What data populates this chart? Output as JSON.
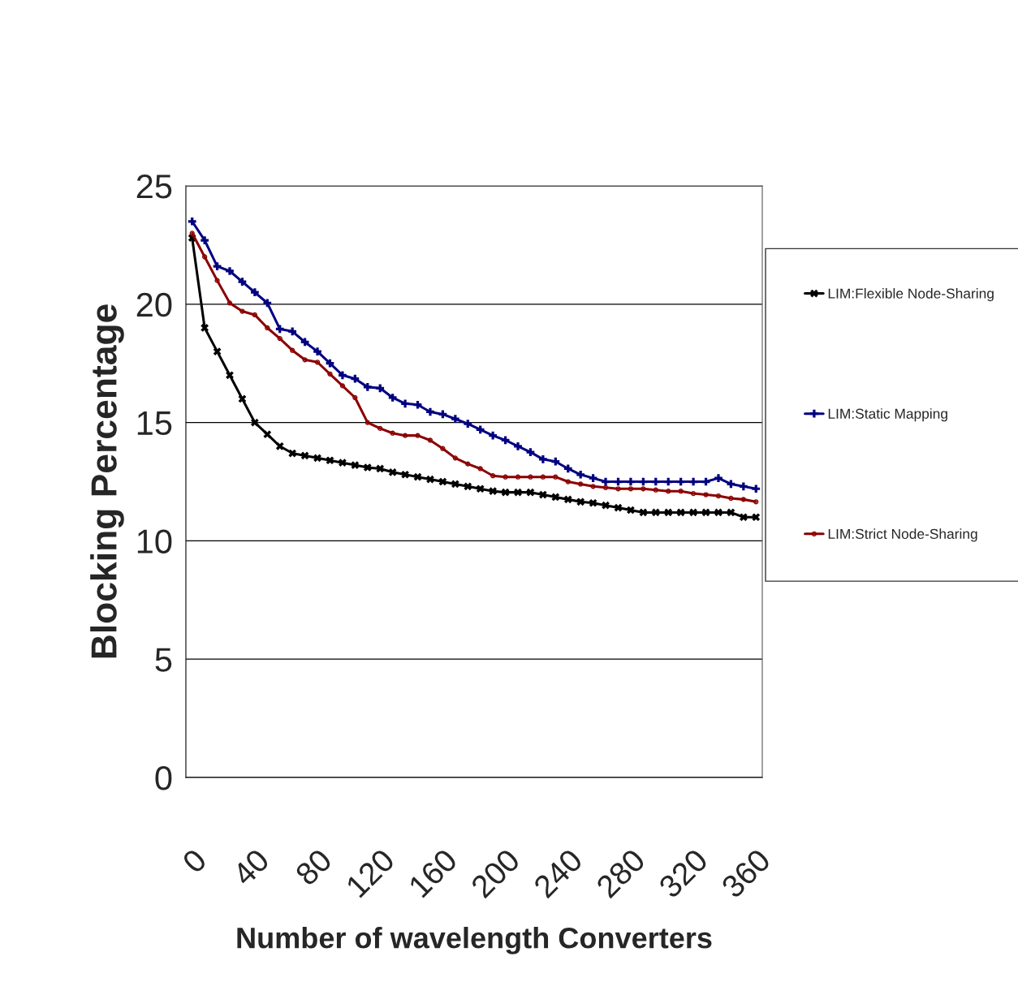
{
  "chart_data": {
    "type": "line",
    "xlabel": "Number of wavelength Converters",
    "ylabel": "Blocking Percentage",
    "categories": [
      "0",
      null,
      null,
      null,
      null,
      "40",
      null,
      null,
      null,
      null,
      "80",
      null,
      null,
      null,
      null,
      "120",
      null,
      null,
      null,
      null,
      "160",
      null,
      null,
      null,
      null,
      "200",
      null,
      null,
      null,
      null,
      "240",
      null,
      null,
      null,
      null,
      "280",
      null,
      null,
      null,
      null,
      "320",
      null,
      null,
      null,
      null,
      "360"
    ],
    "series": [
      {
        "name": "LIM:Flexible Node-Sharing",
        "color": "#000000",
        "marker": "cross",
        "values": [
          22.8,
          19.0,
          18.0,
          17.0,
          16.0,
          15.0,
          14.5,
          14.0,
          13.7,
          13.6,
          13.5,
          13.4,
          13.3,
          13.2,
          13.1,
          13.05,
          12.9,
          12.8,
          12.7,
          12.6,
          12.5,
          12.4,
          12.3,
          12.2,
          12.1,
          12.05,
          12.05,
          12.05,
          11.95,
          11.85,
          11.75,
          11.65,
          11.6,
          11.5,
          11.4,
          11.3,
          11.2,
          11.2,
          11.2,
          11.2,
          11.2,
          11.2,
          11.2,
          11.2,
          11.0,
          11.0
        ]
      },
      {
        "name": "LIM:Static Mapping",
        "color": "#000080",
        "marker": "plus",
        "values": [
          23.5,
          22.7,
          21.6,
          21.4,
          20.95,
          20.5,
          20.05,
          18.95,
          18.85,
          18.4,
          18.0,
          17.5,
          17.0,
          16.85,
          16.5,
          16.45,
          16.05,
          15.8,
          15.75,
          15.45,
          15.35,
          15.15,
          14.95,
          14.7,
          14.45,
          14.25,
          14.0,
          13.75,
          13.45,
          13.35,
          13.05,
          12.8,
          12.65,
          12.5,
          12.5,
          12.5,
          12.5,
          12.5,
          12.5,
          12.5,
          12.5,
          12.5,
          12.65,
          12.4,
          12.3,
          12.2
        ]
      },
      {
        "name": "LIM:Strict Node-Sharing",
        "color": "#8b0000",
        "marker": "circle",
        "values": [
          23.0,
          22.0,
          21.0,
          20.05,
          19.7,
          19.55,
          19.0,
          18.55,
          18.05,
          17.65,
          17.55,
          17.05,
          16.55,
          16.05,
          15.0,
          14.75,
          14.55,
          14.45,
          14.45,
          14.25,
          13.9,
          13.5,
          13.25,
          13.05,
          12.75,
          12.7,
          12.7,
          12.7,
          12.7,
          12.7,
          12.5,
          12.4,
          12.3,
          12.25,
          12.2,
          12.2,
          12.2,
          12.15,
          12.1,
          12.1,
          12.0,
          11.95,
          11.9,
          11.8,
          11.75,
          11.65
        ]
      }
    ],
    "ylim": [
      0,
      25
    ],
    "yticks": [
      0,
      5,
      10,
      15,
      20,
      25
    ],
    "grid": "y",
    "legend": "right",
    "line_style": "solid"
  }
}
